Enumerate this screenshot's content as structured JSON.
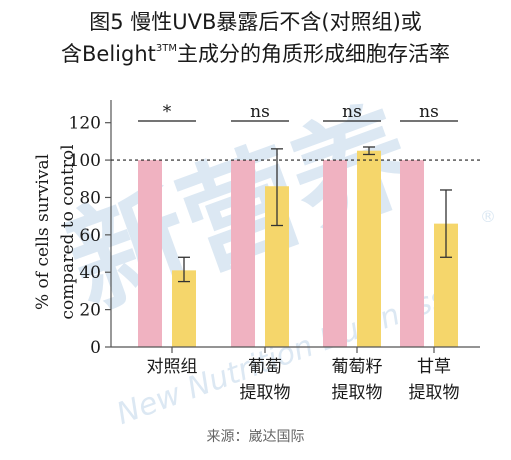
{
  "title": {
    "line1": "图5 慢性UVB暴露后不含(对照组)或",
    "line2_prefix": "含Belight",
    "line2_sup": "3TM",
    "line2_suffix": "主成分的角质形成细胞存活率"
  },
  "watermark": {
    "text_cn": "新营养",
    "text_en": "New Nutrition Business",
    "registered": "®"
  },
  "source": "来源：崴达国际",
  "colors": {
    "control": "#f0b2c1",
    "treated": "#f5d66b",
    "axis": "#555555",
    "error": "#333333",
    "watermark": "#dce8f3"
  },
  "chart_data": {
    "type": "bar",
    "ylabel_lines": [
      "% of cells survival",
      "compared to control"
    ],
    "ylim": [
      0,
      130
    ],
    "yticks": [
      0,
      20,
      40,
      60,
      80,
      100,
      120
    ],
    "reference_line": 100,
    "groups": [
      {
        "label_lines": [
          "对照组"
        ],
        "control": 100,
        "treated": 41,
        "err_low": 35,
        "err_high": 48,
        "sig": "*"
      },
      {
        "label_lines": [
          "葡萄",
          "提取物"
        ],
        "control": 100,
        "treated": 86,
        "err_low": 65,
        "err_high": 106,
        "sig": "ns"
      },
      {
        "label_lines": [
          "葡萄籽",
          "提取物"
        ],
        "control": 100,
        "treated": 105,
        "err_low": 103,
        "err_high": 107,
        "sig": "ns"
      },
      {
        "label_lines": [
          "甘草",
          "提取物"
        ],
        "control": 100,
        "treated": 66,
        "err_low": 48,
        "err_high": 84,
        "sig": "ns"
      }
    ]
  }
}
